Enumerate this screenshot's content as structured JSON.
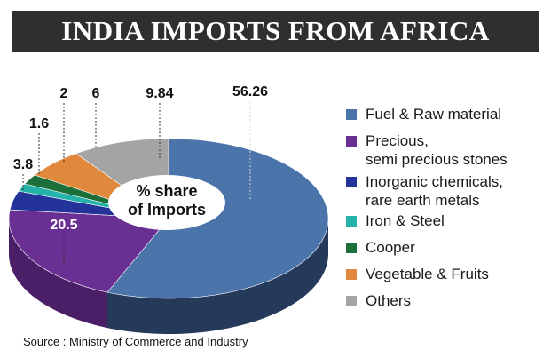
{
  "title": "INDIA IMPORTS FROM AFRICA",
  "center_label_line1": "% share",
  "center_label_line2": "of Imports",
  "source": "Source : Ministry of Commerce and Industry",
  "chart_data": {
    "type": "pie",
    "title": "INDIA IMPORTS FROM AFRICA",
    "subtitle": "% share of Imports",
    "legend_position": "right",
    "slices": [
      {
        "name": "Fuel & Raw material",
        "value": 56.26,
        "label": "56.26",
        "color": "#4a74aa",
        "side": "#253a5a"
      },
      {
        "name": "Precious,\nsemi precious stones",
        "value": 20.5,
        "label": "20.5",
        "color": "#6a2f93",
        "side": "#4a1f67"
      },
      {
        "name": "Inorganic chemicals,\nrare earth metals",
        "value": 3.8,
        "label": "3.8",
        "color": "#24339a",
        "side": "#17216a"
      },
      {
        "name": "Iron & Steel",
        "value": 1.6,
        "label": "1.6",
        "color": "#25b2ab",
        "side": "#167a75"
      },
      {
        "name": "Cooper",
        "value": 2,
        "label": "2",
        "color": "#1c6f38",
        "side": "#124a25"
      },
      {
        "name": "Vegetable & Fruits",
        "value": 6,
        "label": "6",
        "color": "#e0893c",
        "side": "#a25f26"
      },
      {
        "name": "Others",
        "value": 9.84,
        "label": "9.84",
        "color": "#a4a4a4",
        "side": "#727272"
      }
    ]
  }
}
